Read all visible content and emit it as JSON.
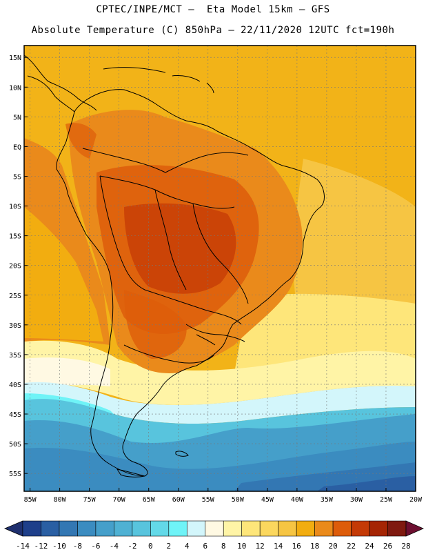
{
  "header": {
    "line1": "CPTEC/INPE/MCT –  Eta Model 15km – GFS",
    "line2": "Absolute Temperature (C) 850hPa – 22/11/2020 12UTC fct=190h"
  },
  "map": {
    "lat_labels": [
      "15N",
      "10N",
      "5N",
      "EQ",
      "5S",
      "10S",
      "15S",
      "20S",
      "25S",
      "30S",
      "35S",
      "40S",
      "45S",
      "50S",
      "55S"
    ],
    "lon_labels": [
      "85W",
      "80W",
      "75W",
      "70W",
      "65W",
      "60W",
      "55W",
      "50W",
      "45W",
      "40W",
      "35W",
      "30W",
      "25W",
      "20W"
    ],
    "extent": {
      "west_deg": -86,
      "east_deg": -20,
      "north_deg": 17,
      "south_deg": -58
    },
    "field": {
      "variable": "Absolute Temperature",
      "units": "C",
      "level": "850hPa",
      "notes": "warmest (22-24C) over central Brazil/Bolivia/Paraguay; 16-20C over northern continent and tropical Atlantic; 8-14C south Atlantic near 30-40S; 0 to -10C south of 45S"
    }
  },
  "colorbar": {
    "tick_labels": [
      "-14",
      "-12",
      "-10",
      "-8",
      "-6",
      "-4",
      "-2",
      "0",
      "2",
      "4",
      "6",
      "8",
      "10",
      "12",
      "14",
      "16",
      "18",
      "20",
      "22",
      "24",
      "26",
      "28"
    ],
    "colors": [
      "#1e3f8a",
      "#2a5fa3",
      "#3377b3",
      "#3b8cc0",
      "#459fca",
      "#4fb1d3",
      "#58c4dd",
      "#63d9e8",
      "#6ff3f7",
      "#d3f6fb",
      "#fff9e3",
      "#fff4a6",
      "#fee67a",
      "#fbd75e",
      "#f6c543",
      "#f2ad10",
      "#ea8a1b",
      "#dd5c0a",
      "#c43a06",
      "#a52504",
      "#7f1a10"
    ],
    "under_color": "#1e2f6e",
    "over_color": "#6d0f30"
  },
  "colors": {
    "ocean_north": "#f2b318",
    "land_hot": "#d9580e",
    "coastline": "#000000"
  }
}
